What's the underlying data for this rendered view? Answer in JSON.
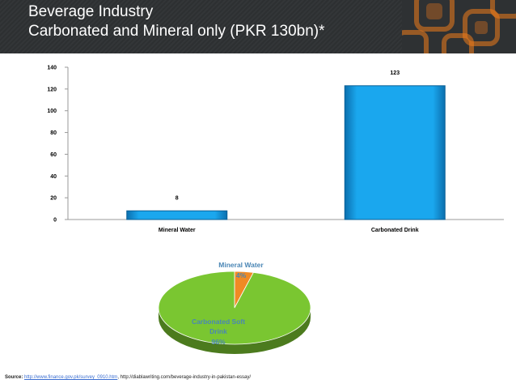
{
  "slide": {
    "title_line1": "Beverage Industry",
    "title_line2": "Carbonated and Mineral only  (PKR 130bn)*"
  },
  "source": {
    "label": "Source:",
    "link": "http://www.finance.gov.pk/survey_0910.htm",
    "rest": ", http://diablawriting.com/beverage-industry-in-pakistan-essay/"
  },
  "colors": {
    "bar": "#1aa7ee",
    "pie_main": "#7ac631",
    "pie_slice": "#f08a24",
    "pie_label": "#4a86b5",
    "header_bg": "#2e3133",
    "deco": "#f07c1a"
  },
  "chart_data": [
    {
      "type": "bar",
      "categories": [
        "Mineral Water",
        "Carbonated Drink"
      ],
      "values": [
        8,
        123
      ],
      "data_labels": [
        "8",
        "123"
      ],
      "ylim": [
        0,
        140
      ],
      "yticks": [
        0,
        20,
        40,
        60,
        80,
        100,
        120,
        140
      ],
      "grid": false,
      "legend": "none"
    },
    {
      "type": "pie",
      "labels": [
        "Mineral Water",
        "Carbonated Soft Drink"
      ],
      "values": [
        4,
        96
      ],
      "data_labels": [
        "4%",
        "96%"
      ],
      "style": "3d",
      "legend": "none"
    }
  ]
}
